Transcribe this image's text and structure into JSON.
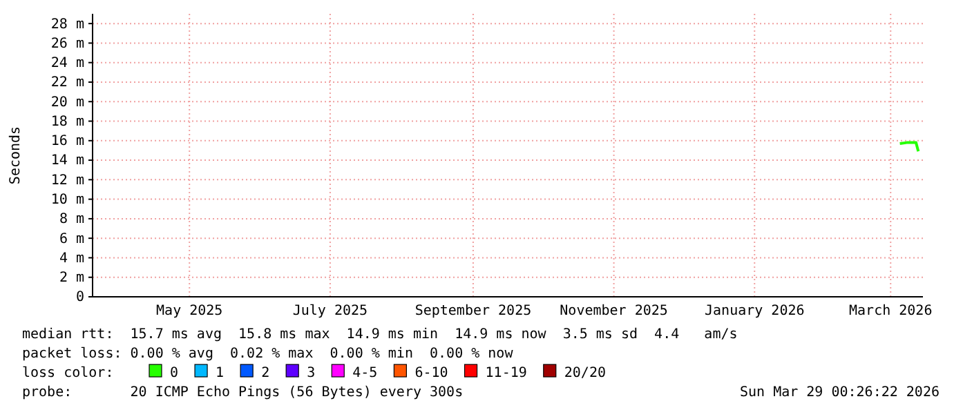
{
  "chart_data": {
    "type": "line",
    "ylabel": "Seconds",
    "legend_title": "loss color:",
    "legend": "bottom",
    "grid": true,
    "x": [
      "2026-03-19",
      "2026-03-22",
      "2026-03-26",
      "2026-03-27"
    ],
    "xlim": [
      "2025-04-03",
      "2026-03-29"
    ],
    "xticks": [
      {
        "value": "2025-05-15",
        "label": "May 2025"
      },
      {
        "value": "2025-07-15",
        "label": "July 2025"
      },
      {
        "value": "2025-09-15",
        "label": "September 2025"
      },
      {
        "value": "2025-11-15",
        "label": "November 2025"
      },
      {
        "value": "2026-01-15",
        "label": "January 2026"
      },
      {
        "value": "2026-03-15",
        "label": "March 2026"
      }
    ],
    "ylim": [
      0,
      29
    ],
    "yticks": [
      0,
      {
        "value": 2,
        "label": "2 m"
      },
      {
        "value": 4,
        "label": "4 m"
      },
      {
        "value": 6,
        "label": "6 m"
      },
      {
        "value": 8,
        "label": "8 m"
      },
      {
        "value": 10,
        "label": "10 m"
      },
      {
        "value": 12,
        "label": "12 m"
      },
      {
        "value": 14,
        "label": "14 m"
      },
      {
        "value": 16,
        "label": "16 m"
      },
      {
        "value": 18,
        "label": "18 m"
      },
      {
        "value": 20,
        "label": "20 m"
      },
      {
        "value": 22,
        "label": "22 m"
      },
      {
        "value": 24,
        "label": "24 m"
      },
      {
        "value": 26,
        "label": "26 m"
      },
      {
        "value": 28,
        "label": "28 m"
      }
    ],
    "series": [
      {
        "name": "0",
        "color": "#26ff00",
        "values": [
          15.7,
          15.8,
          15.8,
          14.9
        ]
      },
      {
        "name": "1",
        "color": "#00b8ff",
        "values": [
          null,
          null,
          null,
          null
        ]
      },
      {
        "name": "2",
        "color": "#0059ff",
        "values": [
          null,
          null,
          null,
          null
        ]
      },
      {
        "name": "3",
        "color": "#5e00ff",
        "values": [
          null,
          null,
          null,
          null
        ]
      },
      {
        "name": "4-5",
        "color": "#ff00ff",
        "values": [
          null,
          null,
          null,
          null
        ]
      },
      {
        "name": "6-10",
        "color": "#ff5500",
        "values": [
          null,
          null,
          null,
          null
        ]
      },
      {
        "name": "11-19",
        "color": "#ff0000",
        "values": [
          null,
          null,
          null,
          null
        ]
      },
      {
        "name": "20/20",
        "color": "#a00000",
        "values": [
          null,
          null,
          null,
          null
        ]
      }
    ],
    "annotations": [
      "median rtt:  15.7 ms avg  15.8 ms max  14.9 ms min  14.9 ms now  3.5 ms sd  4.4   am/s",
      "packet loss: 0.00 % avg  0.02 % max  0.00 % min  0.00 % now",
      "probe:       20 ICMP Echo Pings (56 Bytes) every 300s",
      "Sun Mar 29 00:26:22 2026"
    ]
  }
}
